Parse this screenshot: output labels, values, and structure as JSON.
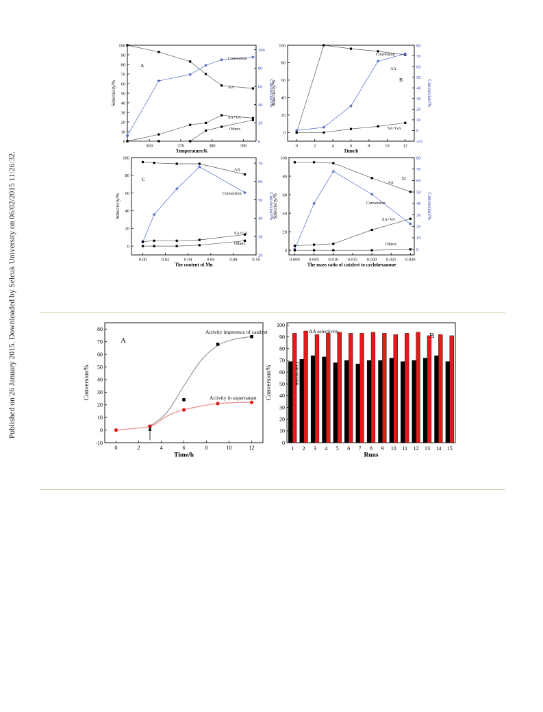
{
  "watermark": "Published on 26 January 2015. Downloaded by Selcuk University on 06/02/2015 11:26:32.",
  "chart_data": [
    {
      "id": "fig-top-A",
      "type": "line",
      "panel_letter": "A",
      "xlabel": "Temperature/K",
      "ylabel": "Selectivity/%",
      "y2label": "Conversion/%",
      "xlim": [
        353,
        394
      ],
      "xticks": [
        360,
        370,
        380,
        390
      ],
      "ylim": [
        0,
        100
      ],
      "yticks": [
        0,
        10,
        20,
        30,
        40,
        50,
        60,
        70,
        80,
        90,
        100
      ],
      "y2lim": [
        0,
        105
      ],
      "y2ticks": [
        0,
        20,
        40,
        60,
        80,
        100
      ],
      "series": [
        {
          "name": "AA",
          "axis": "left",
          "color": "#000000",
          "marker": "square",
          "x": [
            353,
            363,
            373,
            378,
            383,
            393
          ],
          "values": [
            100,
            93,
            83,
            70,
            58,
            55
          ]
        },
        {
          "name": "Conversion",
          "axis": "right",
          "color": "#4a66c4",
          "marker": "star",
          "x": [
            353,
            363,
            373,
            378,
            383,
            393
          ],
          "values": [
            6,
            66,
            73,
            83,
            89,
            92
          ]
        },
        {
          "name": "SA+VA",
          "axis": "left",
          "color": "#000000",
          "marker": "square",
          "x": [
            353,
            363,
            373,
            378,
            383,
            393
          ],
          "values": [
            0,
            7,
            17,
            19,
            27,
            24
          ]
        },
        {
          "name": "Others",
          "axis": "left",
          "color": "#000000",
          "marker": "square",
          "x": [
            353,
            363,
            373,
            378,
            383,
            393
          ],
          "values": [
            0,
            0,
            0,
            11,
            15,
            22
          ]
        }
      ]
    },
    {
      "id": "fig-top-B",
      "type": "line",
      "panel_letter": "B",
      "xlabel": "Time/h",
      "ylabel": "Selectivity/%",
      "y2label": "Conversion/%",
      "xlim": [
        -1,
        13
      ],
      "xticks": [
        0,
        2,
        4,
        6,
        8,
        10,
        12
      ],
      "ylim": [
        -10,
        100
      ],
      "yticks": [
        0,
        20,
        40,
        60,
        80,
        100
      ],
      "y2lim": [
        -10,
        80
      ],
      "y2ticks": [
        -10,
        0,
        10,
        20,
        30,
        40,
        50,
        60,
        70,
        80
      ],
      "series": [
        {
          "name": "AA",
          "axis": "left",
          "color": "#000000",
          "marker": "square",
          "x": [
            0,
            3,
            6,
            9,
            12
          ],
          "values": [
            0,
            100,
            96,
            93,
            89
          ]
        },
        {
          "name": "Conversion",
          "axis": "right",
          "color": "#4a66c4",
          "marker": "star",
          "x": [
            0,
            3,
            6,
            9,
            12
          ],
          "values": [
            0,
            3,
            23,
            65,
            72
          ]
        },
        {
          "name": "SA+GA",
          "axis": "left",
          "color": "#000000",
          "marker": "square",
          "x": [
            0,
            3,
            6,
            9,
            12
          ],
          "values": [
            0,
            0,
            4,
            7,
            11
          ]
        }
      ]
    },
    {
      "id": "fig-top-C",
      "type": "line",
      "panel_letter": "C",
      "xlabel": "The content of Mn",
      "ylabel": "Selectivity/%",
      "y2label": "Conversion/%",
      "xlim": [
        -0.01,
        0.1
      ],
      "xticks": [
        0.0,
        0.02,
        0.04,
        0.06,
        0.08,
        0.1
      ],
      "xticklabels": [
        "0.00",
        "0.02",
        "0.04",
        "0.06",
        "0.08",
        "0.10"
      ],
      "ylim": [
        -10,
        100
      ],
      "yticks": [
        0,
        20,
        40,
        60,
        80,
        100
      ],
      "y2lim": [
        20,
        73
      ],
      "y2ticks": [
        20,
        30,
        40,
        50,
        60,
        70
      ],
      "series": [
        {
          "name": "AA",
          "axis": "left",
          "color": "#000000",
          "marker": "square",
          "x": [
            0.0,
            0.01,
            0.03,
            0.05,
            0.09
          ],
          "values": [
            95,
            94,
            93,
            93,
            81
          ]
        },
        {
          "name": "Conversion",
          "axis": "right",
          "color": "#4a66c4",
          "marker": "star",
          "x": [
            0.0,
            0.01,
            0.03,
            0.05,
            0.09
          ],
          "values": [
            27,
            42,
            56,
            68,
            54
          ]
        },
        {
          "name": "SA+GA",
          "axis": "left",
          "color": "#000000",
          "marker": "square",
          "x": [
            0.0,
            0.01,
            0.03,
            0.05,
            0.09
          ],
          "values": [
            5,
            6,
            6,
            7,
            13
          ]
        },
        {
          "name": "Others",
          "axis": "left",
          "color": "#000000",
          "marker": "square",
          "x": [
            0.0,
            0.01,
            0.03,
            0.05,
            0.09
          ],
          "values": [
            0,
            0,
            0,
            1,
            6
          ]
        }
      ]
    },
    {
      "id": "fig-top-D",
      "type": "line",
      "panel_letter": "D",
      "xlabel": "The mass ratio of catalyst to cyclohexanone",
      "ylabel": "Selectivity/%",
      "y2label": "Conversion/%",
      "xlim": [
        -0.0015,
        0.031
      ],
      "xticks": [
        0.0,
        0.005,
        0.01,
        0.015,
        0.02,
        0.025,
        0.03
      ],
      "xticklabels": [
        "0.000",
        "0.005",
        "0.010",
        "0.015",
        "0.020",
        "0.025",
        "0.030"
      ],
      "ylim": [
        -5,
        100
      ],
      "yticks": [
        0,
        20,
        40,
        60,
        80,
        100
      ],
      "y2lim": [
        -5,
        80
      ],
      "y2ticks": [
        0,
        10,
        20,
        30,
        40,
        50,
        60,
        70,
        80
      ],
      "series": [
        {
          "name": "AA",
          "axis": "left",
          "color": "#000000",
          "marker": "square",
          "x": [
            0.0,
            0.005,
            0.01,
            0.02,
            0.03
          ],
          "values": [
            95,
            95,
            94,
            78,
            63
          ]
        },
        {
          "name": "Conversion",
          "axis": "right",
          "color": "#4a66c4",
          "marker": "star",
          "x": [
            0.0,
            0.005,
            0.01,
            0.02,
            0.03
          ],
          "values": [
            0,
            40,
            68,
            48,
            22
          ]
        },
        {
          "name": "SA+VA",
          "axis": "left",
          "color": "#000000",
          "marker": "square",
          "x": [
            0.0,
            0.005,
            0.01,
            0.02,
            0.03
          ],
          "values": [
            5,
            6,
            7,
            22,
            34
          ]
        },
        {
          "name": "Others",
          "axis": "left",
          "color": "#000000",
          "marker": "square",
          "x": [
            0.0,
            0.005,
            0.01,
            0.02,
            0.03
          ],
          "values": [
            0,
            0,
            0,
            0,
            1
          ]
        }
      ]
    },
    {
      "id": "fig-bottom-A",
      "type": "line",
      "panel_letter": "A",
      "xlabel": "Time/h",
      "ylabel": "Conversion%",
      "xlim": [
        -1,
        13
      ],
      "xticks": [
        0,
        2,
        4,
        6,
        8,
        10,
        12
      ],
      "ylim": [
        -10,
        85
      ],
      "yticks": [
        -10,
        0,
        10,
        20,
        30,
        40,
        50,
        60,
        70,
        80
      ],
      "series": [
        {
          "name": "Activity impreence of catalyst",
          "color": "#000000",
          "curve_color": "#9a9a9a",
          "marker": "square",
          "x": [
            3,
            6,
            9,
            12
          ],
          "values": [
            3,
            24,
            68,
            74
          ]
        },
        {
          "name": "Activity in supernatant",
          "color": "#e01b1b",
          "curve_color": "#f08a8a",
          "marker": "circle",
          "x": [
            0,
            3,
            6,
            9,
            12
          ],
          "values": [
            0,
            3,
            16,
            21,
            22
          ]
        }
      ]
    },
    {
      "id": "fig-bottom-B",
      "type": "bar",
      "panel_letter": "B",
      "xlabel": "Runs",
      "ylabel": "Conversion%",
      "categories": [
        "1",
        "2",
        "3",
        "4",
        "5",
        "6",
        "7",
        "8",
        "9",
        "10",
        "11",
        "12",
        "13",
        "14",
        "15"
      ],
      "ylim": [
        0,
        102
      ],
      "yticks": [
        0,
        10,
        20,
        30,
        40,
        50,
        60,
        70,
        80,
        90,
        100
      ],
      "series": [
        {
          "name": "Conversion",
          "color": "#000000",
          "values": [
            69,
            71,
            74,
            73,
            68,
            70,
            67,
            70,
            70,
            72,
            69,
            70,
            72,
            74,
            69
          ]
        },
        {
          "name": "AA selectivity",
          "color": "#e41a1a",
          "values": [
            93,
            95,
            92,
            93,
            94,
            93,
            93,
            94,
            93,
            92,
            93,
            94,
            91,
            92,
            91
          ]
        }
      ]
    }
  ]
}
